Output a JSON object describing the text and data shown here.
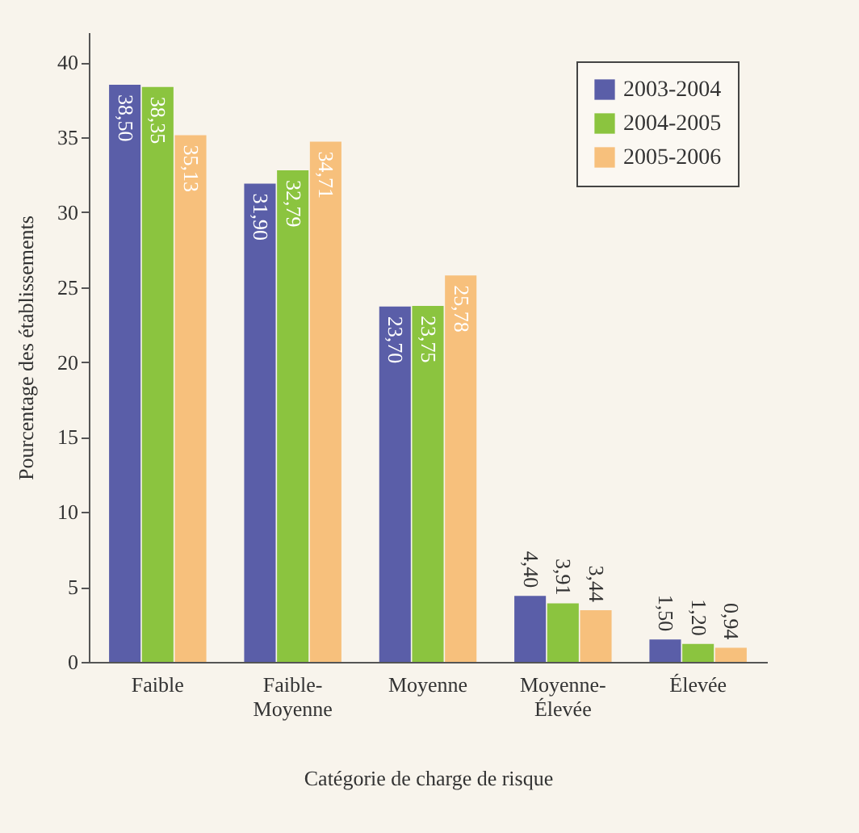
{
  "chart_data": {
    "type": "bar",
    "xlabel": "Catégorie de charge de risque",
    "ylabel": "Pourcentage des établissements",
    "categories": [
      "Faible",
      "Faible-Moyenne",
      "Moyenne",
      "Moyenne-Élevée",
      "Élevée"
    ],
    "series": [
      {
        "name": "2003-2004",
        "color": "#5a5ea8",
        "values": [
          38.5,
          31.9,
          23.7,
          4.4,
          1.5
        ],
        "value_labels": [
          "38,50",
          "31,90",
          "23,70",
          "4,40",
          "1,50"
        ]
      },
      {
        "name": "2004-2005",
        "color": "#8bc43f",
        "values": [
          38.35,
          32.79,
          23.75,
          3.91,
          1.2
        ],
        "value_labels": [
          "38,35",
          "32,79",
          "23,75",
          "3,91",
          "1,20"
        ]
      },
      {
        "name": "2005-2006",
        "color": "#f7c07c",
        "values": [
          35.13,
          34.71,
          25.78,
          3.44,
          0.94
        ],
        "value_labels": [
          "35,13",
          "34,71",
          "25,78",
          "3,44",
          "0,94"
        ]
      }
    ],
    "ylim": [
      0,
      42
    ],
    "yticks": [
      0,
      5,
      10,
      15,
      20,
      25,
      30,
      35,
      40
    ],
    "legend": "top right",
    "grid": false
  }
}
